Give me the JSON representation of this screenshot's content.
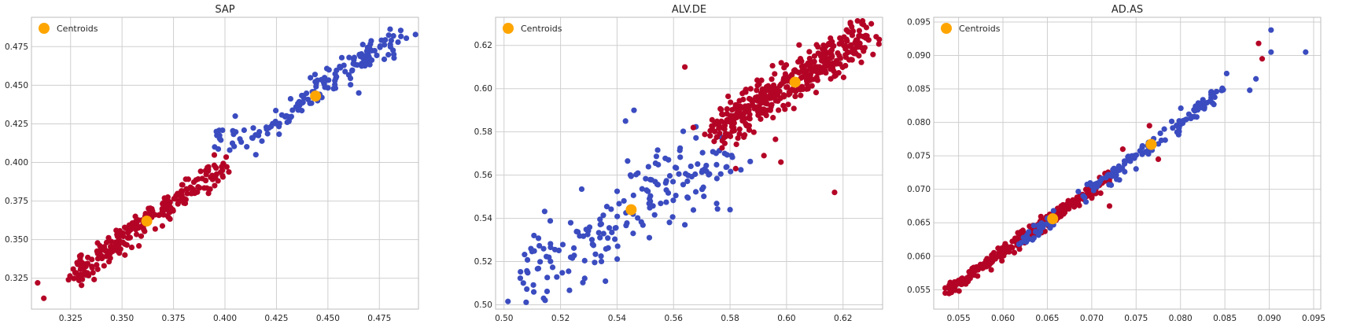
{
  "chart_data": [
    {
      "type": "scatter",
      "title": "SAP",
      "xlabel": "",
      "ylabel": "",
      "xlim": [
        0.306,
        0.494
      ],
      "ylim": [
        0.305,
        0.494
      ],
      "xticks": [
        0.325,
        0.35,
        0.375,
        0.4,
        0.425,
        0.45,
        0.475
      ],
      "yticks": [
        0.325,
        0.35,
        0.375,
        0.4,
        0.425,
        0.45,
        0.475
      ],
      "tick_decimals": 3,
      "grid": true,
      "legend": {
        "label": "Centroids",
        "position": "top-left"
      },
      "centroids": [
        [
          0.362,
          0.362
        ],
        [
          0.444,
          0.443
        ]
      ],
      "clusters": [
        {
          "color": "#b40426",
          "segments": [
            [
              [
                0.326,
                0.326
              ],
              [
                0.4,
                0.4
              ]
            ]
          ],
          "count": 260,
          "spread": 0.004,
          "outliers": [
            [
              0.309,
              0.322
            ],
            [
              0.312,
              0.312
            ],
            [
              0.324,
              0.324
            ],
            [
              0.395,
              0.385
            ],
            [
              0.392,
              0.38
            ]
          ]
        },
        {
          "color": "#3b4cc0",
          "segments": [
            [
              [
                0.395,
                0.415
              ],
              [
                0.42,
                0.42
              ]
            ],
            [
              [
                0.42,
                0.418
              ],
              [
                0.448,
                0.452
              ]
            ],
            [
              [
                0.448,
                0.45
              ],
              [
                0.488,
                0.485
              ]
            ]
          ],
          "count": 160,
          "spread": 0.004,
          "outliers": [
            [
              0.395,
              0.41
            ],
            [
              0.405,
              0.43
            ],
            [
              0.415,
              0.405
            ],
            [
              0.445,
              0.44
            ],
            [
              0.465,
              0.445
            ],
            [
              0.482,
              0.47
            ]
          ]
        }
      ],
      "colors": {
        "cluster_0": "#b40426",
        "cluster_1": "#3b4cc0",
        "centroid": "#ffa500"
      }
    },
    {
      "type": "scatter",
      "title": "ALV.DE",
      "xlabel": "",
      "ylabel": "",
      "xlim": [
        0.497,
        0.634
      ],
      "ylim": [
        0.498,
        0.633
      ],
      "xticks": [
        0.5,
        0.52,
        0.54,
        0.56,
        0.58,
        0.6,
        0.62
      ],
      "yticks": [
        0.5,
        0.52,
        0.54,
        0.56,
        0.58,
        0.6,
        0.62
      ],
      "tick_decimals": 2,
      "grid": true,
      "legend": {
        "label": "Centroids",
        "position": "top-left"
      },
      "centroids": [
        [
          0.545,
          0.544
        ],
        [
          0.603,
          0.603
        ]
      ],
      "clusters": [
        {
          "color": "#3b4cc0",
          "segments": [
            [
              [
                0.505,
                0.512
              ],
              [
                0.54,
                0.54
              ]
            ],
            [
              [
                0.54,
                0.54
              ],
              [
                0.58,
                0.575
              ]
            ]
          ],
          "count": 190,
          "spread": 0.009,
          "outliers": [
            [
              0.514,
              0.503
            ],
            [
              0.564,
              0.537
            ],
            [
              0.58,
              0.544
            ],
            [
              0.546,
              0.59
            ],
            [
              0.543,
              0.585
            ]
          ]
        },
        {
          "color": "#b40426",
          "segments": [
            [
              [
                0.575,
                0.58
              ],
              [
                0.628,
                0.625
              ]
            ]
          ],
          "count": 420,
          "spread": 0.0045,
          "outliers": [
            [
              0.564,
              0.61
            ],
            [
              0.617,
              0.552
            ],
            [
              0.598,
              0.566
            ],
            [
              0.592,
              0.569
            ],
            [
              0.582,
              0.563
            ],
            [
              0.567,
              0.582
            ],
            [
              0.63,
              0.63
            ]
          ]
        }
      ],
      "colors": {
        "cluster_0": "#3b4cc0",
        "cluster_1": "#b40426",
        "centroid": "#ffa500"
      }
    },
    {
      "type": "scatter",
      "title": "AD.AS",
      "xlabel": "",
      "ylabel": "",
      "xlim": [
        0.0522,
        0.0958
      ],
      "ylim": [
        0.0521,
        0.0957
      ],
      "xticks": [
        0.055,
        0.06,
        0.065,
        0.07,
        0.075,
        0.08,
        0.085,
        0.09,
        0.095
      ],
      "yticks": [
        0.055,
        0.06,
        0.065,
        0.07,
        0.075,
        0.08,
        0.085,
        0.09,
        0.095
      ],
      "tick_decimals": 3,
      "grid": true,
      "legend": {
        "label": "Centroids",
        "position": "top-left"
      },
      "centroids": [
        [
          0.0656,
          0.0656
        ],
        [
          0.0767,
          0.0767
        ]
      ],
      "clusters": [
        {
          "color": "#b40426",
          "segments": [
            [
              [
                0.0538,
                0.0548
              ],
              [
                0.072,
                0.0718
              ]
            ]
          ],
          "count": 300,
          "spread": 0.0005,
          "outliers": [
            [
              0.0535,
              0.0545
            ],
            [
              0.0765,
              0.0795
            ],
            [
              0.0735,
              0.076
            ],
            [
              0.072,
              0.0675
            ],
            [
              0.0775,
              0.0745
            ],
            [
              0.0888,
              0.0918
            ],
            [
              0.0892,
              0.0895
            ]
          ]
        },
        {
          "color": "#3b4cc0",
          "segments": [
            [
              [
                0.0615,
                0.0618
              ],
              [
                0.066,
                0.066
              ]
            ],
            [
              [
                0.069,
                0.069
              ],
              [
                0.085,
                0.085
              ]
            ]
          ],
          "count": 150,
          "spread": 0.0006,
          "outliers": [
            [
              0.0902,
              0.0938
            ],
            [
              0.0941,
              0.0905
            ],
            [
              0.0885,
              0.0865
            ],
            [
              0.0878,
              0.0848
            ],
            [
              0.0852,
              0.0873
            ],
            [
              0.0902,
              0.0905
            ]
          ]
        }
      ],
      "colors": {
        "cluster_0": "#b40426",
        "cluster_1": "#3b4cc0",
        "centroid": "#ffa500"
      }
    }
  ]
}
